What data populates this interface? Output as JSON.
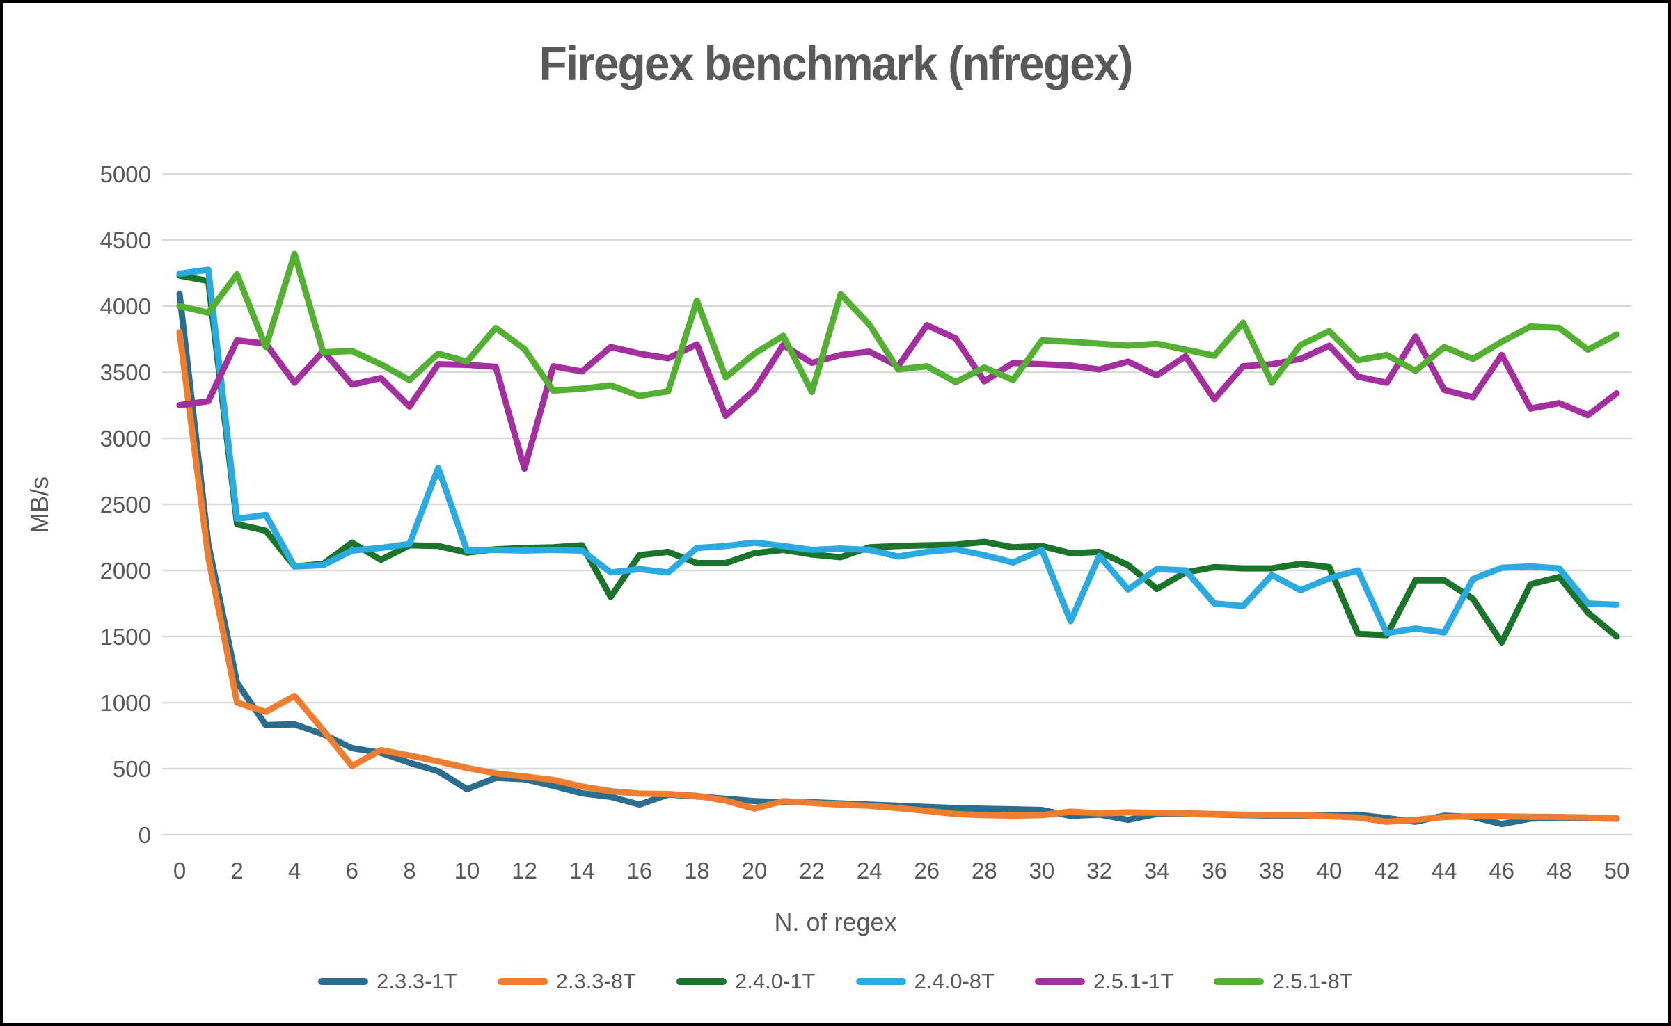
{
  "frame": {
    "border_color": "#000000",
    "background_color": "#FFFFFF",
    "text_color": "#595959",
    "gridline_color": "#D9D9D9"
  },
  "title": "Firegex benchmark (nfregex)",
  "chart_data": {
    "type": "line",
    "title": "Firegex benchmark (nfregex)",
    "xlabel": "N. of regex",
    "ylabel": "MB/s",
    "grid": true,
    "legend_position": "bottom",
    "xlim": [
      0,
      50
    ],
    "ylim": [
      0,
      5000
    ],
    "x_ticks": [
      0,
      2,
      4,
      6,
      8,
      10,
      12,
      14,
      16,
      18,
      20,
      22,
      24,
      26,
      28,
      30,
      32,
      34,
      36,
      38,
      40,
      42,
      44,
      46,
      48,
      50
    ],
    "y_ticks": [
      0,
      500,
      1000,
      1500,
      2000,
      2500,
      3000,
      3500,
      4000,
      4500,
      5000
    ],
    "x": [
      0,
      1,
      2,
      3,
      4,
      5,
      6,
      7,
      8,
      9,
      10,
      11,
      12,
      13,
      14,
      15,
      16,
      17,
      18,
      19,
      20,
      21,
      22,
      23,
      24,
      25,
      26,
      27,
      28,
      29,
      30,
      31,
      32,
      33,
      34,
      35,
      36,
      37,
      38,
      39,
      40,
      41,
      42,
      43,
      44,
      45,
      46,
      47,
      48,
      49,
      50
    ],
    "series": [
      {
        "name": "2.3.3-1T",
        "color": "#2B6D8F",
        "values": [
          4090,
          2200,
          1150,
          830,
          835,
          760,
          655,
          620,
          545,
          480,
          345,
          430,
          420,
          370,
          313,
          287,
          228,
          304,
          290,
          272,
          254,
          246,
          246,
          237,
          228,
          219,
          210,
          201,
          196,
          192,
          187,
          142,
          152,
          112,
          157,
          157,
          153,
          148,
          144,
          142,
          148,
          151,
          126,
          98,
          144,
          134,
          80,
          121,
          130,
          126,
          121
        ]
      },
      {
        "name": "2.3.3-8T",
        "color": "#EE7D2F",
        "values": [
          3800,
          2100,
          1000,
          930,
          1050,
          790,
          520,
          640,
          600,
          555,
          505,
          465,
          440,
          415,
          365,
          329,
          311,
          308,
          294,
          258,
          198,
          254,
          240,
          228,
          219,
          201,
          180,
          157,
          148,
          144,
          148,
          174,
          162,
          169,
          166,
          162,
          157,
          151,
          148,
          148,
          139,
          130,
          98,
          112,
          134,
          139,
          139,
          135,
          134,
          130,
          126
        ]
      },
      {
        "name": "2.4.0-1T",
        "color": "#1B742C",
        "values": [
          4230,
          4190,
          2350,
          2300,
          2030,
          2050,
          2210,
          2080,
          2190,
          2185,
          2135,
          2160,
          2170,
          2175,
          2190,
          1800,
          2115,
          2140,
          2055,
          2055,
          2130,
          2155,
          2120,
          2100,
          2175,
          2185,
          2190,
          2195,
          2215,
          2175,
          2185,
          2130,
          2140,
          2040,
          1860,
          1985,
          2025,
          2015,
          2015,
          2050,
          2025,
          1520,
          1510,
          1925,
          1925,
          1785,
          1455,
          1895,
          1950,
          1680,
          1500
        ]
      },
      {
        "name": "2.4.0-8T",
        "color": "#2BA9E1",
        "values": [
          4245,
          4275,
          2390,
          2420,
          2030,
          2040,
          2150,
          2170,
          2200,
          2775,
          2150,
          2155,
          2150,
          2155,
          2150,
          1985,
          2010,
          1985,
          2170,
          2185,
          2210,
          2185,
          2155,
          2165,
          2155,
          2105,
          2140,
          2160,
          2115,
          2060,
          2155,
          1615,
          2110,
          1855,
          2010,
          2000,
          1750,
          1730,
          1965,
          1850,
          1940,
          2000,
          1525,
          1560,
          1530,
          1935,
          2020,
          2030,
          2015,
          1750,
          1740
        ]
      },
      {
        "name": "2.5.1-1T",
        "color": "#A42F9E",
        "values": [
          3250,
          3280,
          3740,
          3715,
          3420,
          3660,
          3405,
          3455,
          3240,
          3560,
          3555,
          3540,
          2770,
          3545,
          3505,
          3690,
          3640,
          3605,
          3710,
          3170,
          3365,
          3705,
          3570,
          3630,
          3655,
          3545,
          3855,
          3755,
          3430,
          3570,
          3560,
          3550,
          3520,
          3580,
          3475,
          3620,
          3295,
          3545,
          3560,
          3600,
          3700,
          3465,
          3420,
          3770,
          3365,
          3310,
          3630,
          3225,
          3265,
          3175,
          3340
        ]
      },
      {
        "name": "2.5.1-8T",
        "color": "#54B032",
        "values": [
          4000,
          3950,
          4240,
          3690,
          4395,
          3650,
          3660,
          3560,
          3440,
          3640,
          3580,
          3835,
          3675,
          3360,
          3375,
          3400,
          3320,
          3355,
          4040,
          3460,
          3640,
          3775,
          3350,
          4090,
          3860,
          3520,
          3545,
          3425,
          3535,
          3440,
          3740,
          3730,
          3715,
          3700,
          3715,
          3670,
          3625,
          3875,
          3420,
          3705,
          3810,
          3590,
          3630,
          3510,
          3690,
          3600,
          3730,
          3845,
          3835,
          3670,
          3785
        ]
      }
    ]
  }
}
